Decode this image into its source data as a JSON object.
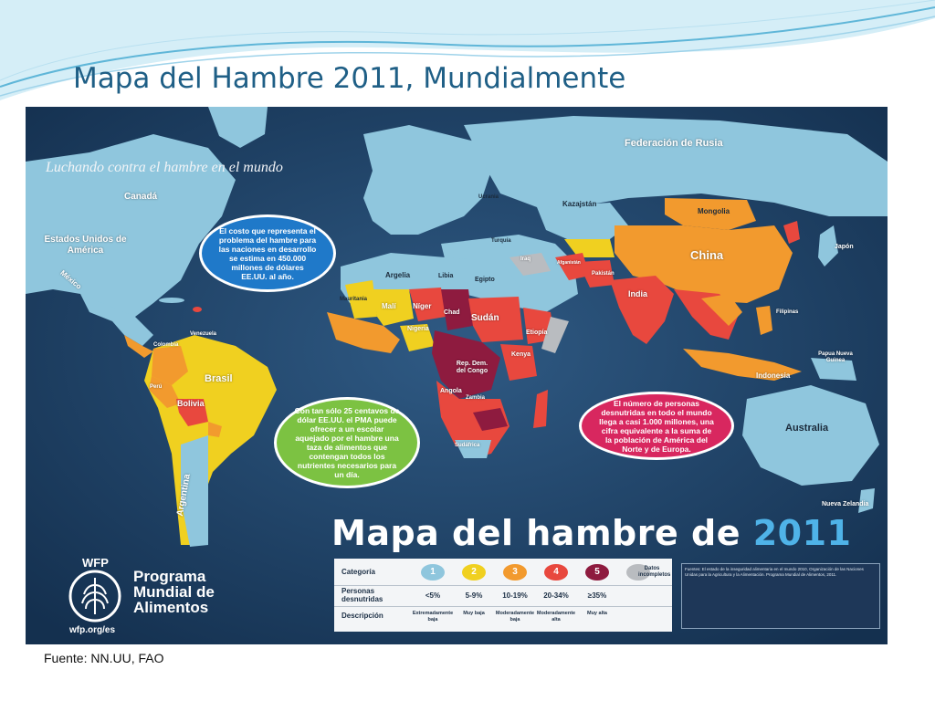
{
  "slide": {
    "title": "Mapa del Hambre 2011, Mundialmente",
    "footer": "Fuente: NN.UU, FAO"
  },
  "map": {
    "banner": "Luchando contra el hambre en el mundo",
    "big_title_prefix": "Mapa del hambre de ",
    "big_title_year": "2011",
    "bubbles": {
      "blue": "El costo que representa el problema del hambre para las naciones en desarrollo se estima en 450.000 millones de dólares EE.UU. al año.",
      "green": "Con tan sólo 25 centavos de dólar EE.UU. el PMA puede ofrecer a un escolar aquejado por el hambre una taza de alimentos que contengan todos los nutrientes necesarios para un día.",
      "pink": "El número de personas desnutridas en todo el mundo llega a casi 1.000 millones, una cifra equivalente a la suma de la población de América del Norte y de Europa."
    },
    "country_labels": {
      "rusia": "Federación de Rusia",
      "canada": "Canadá",
      "eeuu": "Estados Unidos de América",
      "mexico": "México",
      "brasil": "Brasil",
      "bolivia": "Bolivia",
      "argentina": "Argentina",
      "china": "China",
      "india": "India",
      "mongolia": "Mongolia",
      "kazajstan": "Kazajstán",
      "japon": "Japón",
      "australia": "Australia",
      "indonesia": "Indonesia",
      "sudan": "Sudán",
      "chad": "Chad",
      "niger": "Níger",
      "mali": "Malí",
      "nigeria": "Nigeria",
      "etiopia": "Etiopía",
      "congo": "Rep. Dem. del Congo",
      "angola": "Angola",
      "argelia": "Argelia",
      "libia": "Libia",
      "egipto": "Egipto",
      "mauritania": "Mauritania",
      "kenya": "Kenya",
      "zambia": "Zambia",
      "sudafrica": "Sudáfrica",
      "nz": "Nueva Zelandia",
      "pakistan": "Pakistán",
      "afganistan": "Afganistán",
      "iraq": "Iraq",
      "turquia": "Turquía",
      "ucrania": "Ucrania",
      "filipinas": "Filipinas",
      "papua": "Papua Nueva Guinea",
      "venezuela": "Venezuela",
      "colombia": "Colombia",
      "peru": "Perú"
    },
    "legend": {
      "row_labels": [
        "Categoría",
        "Personas desnutridas",
        "Descripción"
      ],
      "categories": [
        {
          "num": "1",
          "value": "<5%",
          "desc": "Extremadamente baja",
          "color": "#8fc6dd"
        },
        {
          "num": "2",
          "value": "5-9%",
          "desc": "Muy baja",
          "color": "#f0d020"
        },
        {
          "num": "3",
          "value": "10-19%",
          "desc": "Moderadamente baja",
          "color": "#f29a2e"
        },
        {
          "num": "4",
          "value": "20-34%",
          "desc": "Moderadamente alta",
          "color": "#e8483e"
        },
        {
          "num": "5",
          "value": "≥35%",
          "desc": "Muy alta",
          "color": "#8e1b3f"
        },
        {
          "num": "",
          "value": "Datos incompletos",
          "desc": "",
          "color": "#b9bcc0"
        }
      ]
    },
    "sources_text": "Fuentes: El estado de la inseguridad alimentaria en el mundo 2010, Organización de las Naciones Unidas para la Agricultura y la Alimentación. Programa Mundial de Alimentos, 2011.",
    "wfp": {
      "abbr": "WFP",
      "name_l1": "Programa",
      "name_l2": "Mundial de",
      "name_l3": "Alimentos",
      "url": "wfp.org/es"
    }
  }
}
